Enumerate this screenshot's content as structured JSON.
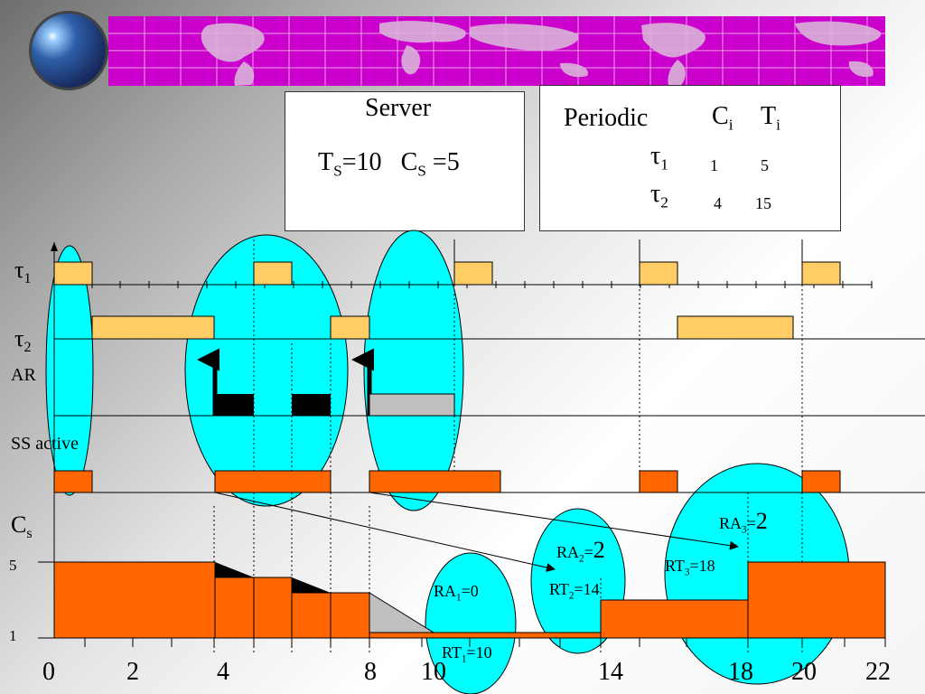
{
  "server_box": {
    "title": "Server",
    "ts_label": "T",
    "ts_sub": "S",
    "ts_value": "=10",
    "cs_label": "C",
    "cs_sub": "S",
    "cs_value": " =5"
  },
  "periodic_box": {
    "title": "Periodic",
    "col_c": "C",
    "col_c_sub": "i",
    "col_t": "T",
    "col_t_sub": "i",
    "tasks": [
      {
        "symbol": "τ",
        "sub": "1",
        "c": "1",
        "t": "5"
      },
      {
        "symbol": "τ",
        "sub": "2",
        "c": "4",
        "t": "15"
      }
    ]
  },
  "rows": {
    "tau1": {
      "symbol": "τ",
      "sub": "1"
    },
    "tau2": {
      "symbol": "τ",
      "sub": "2"
    },
    "ar": "AR",
    "ss_active": "SS active",
    "cs": {
      "symbol": "C",
      "sub": "s"
    }
  },
  "y_ticks": [
    "5",
    "1"
  ],
  "x_ticks": [
    "0",
    "2",
    "4",
    "8",
    "10",
    "14",
    "18",
    "20",
    "22"
  ],
  "callouts": {
    "ra1": {
      "pre": "RA",
      "sub": "1",
      "post": "=0"
    },
    "rt1": {
      "pre": "RT",
      "sub": "1",
      "post": "=10"
    },
    "ra2": {
      "pre": "RA",
      "sub": "2",
      "post": "=",
      "big": "2"
    },
    "rt2": {
      "pre": "RT",
      "sub": "2",
      "post": "=14"
    },
    "ra3": {
      "pre": "RA",
      "sub": "3",
      "post": "=",
      "big": "2"
    },
    "rt3": {
      "pre": "RT",
      "sub": "3",
      "post": "=18"
    }
  },
  "colors": {
    "task_fill": "#ffcc66",
    "server_fill": "#ff6600",
    "ellipse_fill": "#00ffff",
    "banner": "#cc00cc",
    "arrival_fill": "#000000",
    "pending_fill": "#c0c0c0"
  }
}
